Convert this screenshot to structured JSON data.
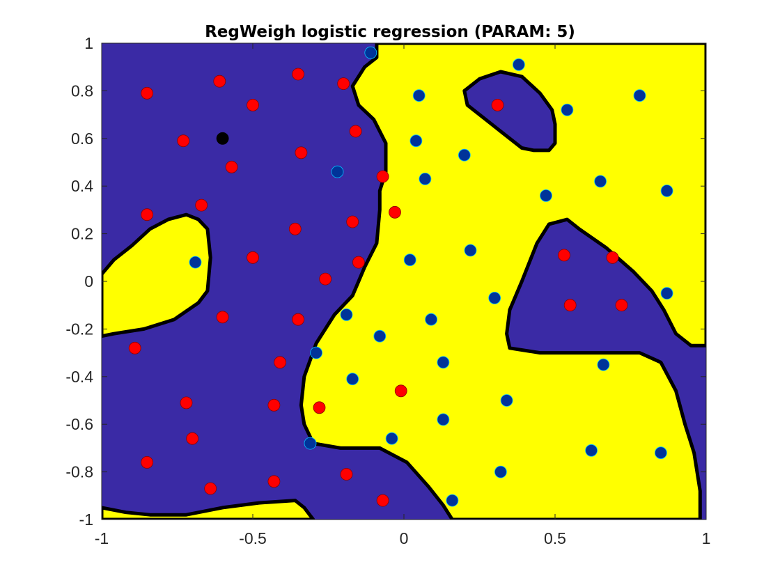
{
  "chart_data": {
    "type": "scatter",
    "title": "RegWeigh logistic regression (PARAM: 5)",
    "xlabel": "",
    "ylabel": "",
    "xlim": [
      -1,
      1
    ],
    "ylim": [
      -1,
      1
    ],
    "grid": false,
    "colors": {
      "class_region_a": "#3A2AA5",
      "class_region_b": "#FFFF00",
      "decision_boundary": "#000000",
      "class_red_points": "#FF0000",
      "class_blue_points": "#003399",
      "highlight_point": "#000000"
    },
    "x_ticks": [
      {
        "value": -1,
        "label": "-1"
      },
      {
        "value": -0.5,
        "label": "-0.5"
      },
      {
        "value": 0,
        "label": "0"
      },
      {
        "value": 0.5,
        "label": "0.5"
      },
      {
        "value": 1,
        "label": "1"
      }
    ],
    "y_ticks": [
      {
        "value": 1,
        "label": "1"
      },
      {
        "value": 0.8,
        "label": "0.8"
      },
      {
        "value": 0.6,
        "label": "0.6"
      },
      {
        "value": 0.4,
        "label": "0.4"
      },
      {
        "value": 0.2,
        "label": "0.2"
      },
      {
        "value": 0,
        "label": "0"
      },
      {
        "value": -0.2,
        "label": "-0.2"
      },
      {
        "value": -0.4,
        "label": "-0.4"
      },
      {
        "value": -0.6,
        "label": "-0.6"
      },
      {
        "value": -0.8,
        "label": "-0.8"
      },
      {
        "value": -1,
        "label": "-1"
      }
    ],
    "regions": [
      {
        "class": "b",
        "points": [
          [
            -0.09,
            1.0
          ],
          [
            -0.09,
            0.94
          ],
          [
            -0.13,
            0.9
          ],
          [
            -0.17,
            0.82
          ],
          [
            -0.15,
            0.74
          ],
          [
            -0.1,
            0.68
          ],
          [
            -0.06,
            0.58
          ],
          [
            -0.06,
            0.46
          ],
          [
            -0.08,
            0.38
          ],
          [
            -0.08,
            0.3
          ],
          [
            -0.09,
            0.16
          ],
          [
            -0.13,
            0.06
          ],
          [
            -0.17,
            -0.06
          ],
          [
            -0.23,
            -0.14
          ],
          [
            -0.29,
            -0.26
          ],
          [
            -0.33,
            -0.4
          ],
          [
            -0.34,
            -0.52
          ],
          [
            -0.33,
            -0.6
          ],
          [
            -0.3,
            -0.68
          ],
          [
            -0.21,
            -0.7
          ],
          [
            -0.08,
            -0.7
          ],
          [
            0.01,
            -0.76
          ],
          [
            0.08,
            -0.86
          ],
          [
            0.13,
            -0.94
          ],
          [
            0.16,
            -1.0
          ],
          [
            0.98,
            -1.0
          ],
          [
            0.98,
            -0.88
          ],
          [
            0.96,
            -0.72
          ],
          [
            0.93,
            -0.6
          ],
          [
            0.9,
            -0.46
          ],
          [
            0.85,
            -0.34
          ],
          [
            0.78,
            -0.3
          ],
          [
            0.68,
            -0.3
          ],
          [
            0.45,
            -0.3
          ],
          [
            0.35,
            -0.28
          ],
          [
            0.34,
            -0.22
          ],
          [
            0.35,
            -0.12
          ],
          [
            0.39,
            0.0
          ],
          [
            0.44,
            0.16
          ],
          [
            0.48,
            0.24
          ],
          [
            0.54,
            0.26
          ],
          [
            0.58,
            0.22
          ],
          [
            0.67,
            0.14
          ],
          [
            0.76,
            0.04
          ],
          [
            0.82,
            -0.04
          ],
          [
            0.86,
            -0.12
          ],
          [
            0.9,
            -0.22
          ],
          [
            0.95,
            -0.27
          ],
          [
            1.0,
            -0.27
          ],
          [
            1.0,
            1.0
          ]
        ]
      },
      {
        "class": "a",
        "points": [
          [
            0.2,
            0.8
          ],
          [
            0.25,
            0.85
          ],
          [
            0.32,
            0.88
          ],
          [
            0.39,
            0.86
          ],
          [
            0.45,
            0.79
          ],
          [
            0.49,
            0.72
          ],
          [
            0.5,
            0.66
          ],
          [
            0.5,
            0.58
          ],
          [
            0.48,
            0.55
          ],
          [
            0.43,
            0.55
          ],
          [
            0.39,
            0.56
          ],
          [
            0.33,
            0.62
          ],
          [
            0.27,
            0.68
          ],
          [
            0.21,
            0.74
          ]
        ]
      },
      {
        "class": "b",
        "points": [
          [
            -1.0,
            0.03
          ],
          [
            -0.96,
            0.09
          ],
          [
            -0.9,
            0.15
          ],
          [
            -0.84,
            0.22
          ],
          [
            -0.78,
            0.26
          ],
          [
            -0.72,
            0.28
          ],
          [
            -0.68,
            0.26
          ],
          [
            -0.65,
            0.22
          ],
          [
            -0.64,
            0.1
          ],
          [
            -0.65,
            -0.04
          ],
          [
            -0.68,
            -0.09
          ],
          [
            -0.76,
            -0.16
          ],
          [
            -0.86,
            -0.2
          ],
          [
            -0.96,
            -0.22
          ],
          [
            -1.0,
            -0.23
          ]
        ]
      },
      {
        "class": "b",
        "points": [
          [
            -1.0,
            -1.0
          ],
          [
            -1.0,
            -0.95
          ],
          [
            -0.92,
            -0.97
          ],
          [
            -0.84,
            -0.98
          ],
          [
            -0.72,
            -0.98
          ],
          [
            -0.6,
            -0.95
          ],
          [
            -0.48,
            -0.93
          ],
          [
            -0.36,
            -0.92
          ],
          [
            -0.33,
            -0.95
          ],
          [
            -0.3,
            -1.0
          ]
        ]
      }
    ],
    "series": [
      {
        "class": "red",
        "points": [
          [
            -0.85,
            0.79
          ],
          [
            -0.61,
            0.84
          ],
          [
            -0.35,
            0.87
          ],
          [
            -0.2,
            0.83
          ],
          [
            -0.5,
            0.74
          ],
          [
            -0.73,
            0.59
          ],
          [
            -0.16,
            0.63
          ],
          [
            -0.34,
            0.54
          ],
          [
            -0.57,
            0.48
          ],
          [
            -0.07,
            0.44
          ],
          [
            -0.85,
            0.28
          ],
          [
            -0.67,
            0.32
          ],
          [
            -0.36,
            0.22
          ],
          [
            -0.17,
            0.25
          ],
          [
            -0.03,
            0.29
          ],
          [
            -0.5,
            0.1
          ],
          [
            -0.15,
            0.08
          ],
          [
            -0.26,
            0.01
          ],
          [
            -0.6,
            -0.15
          ],
          [
            -0.35,
            -0.16
          ],
          [
            -0.89,
            -0.28
          ],
          [
            -0.41,
            -0.34
          ],
          [
            -0.72,
            -0.51
          ],
          [
            -0.43,
            -0.52
          ],
          [
            -0.28,
            -0.53
          ],
          [
            -0.7,
            -0.66
          ],
          [
            -0.85,
            -0.76
          ],
          [
            -0.64,
            -0.87
          ],
          [
            -0.43,
            -0.84
          ],
          [
            -0.19,
            -0.81
          ],
          [
            -0.07,
            -0.92
          ],
          [
            -0.01,
            -0.46
          ],
          [
            0.31,
            0.74
          ],
          [
            0.53,
            0.11
          ],
          [
            0.69,
            0.1
          ],
          [
            0.55,
            -0.1
          ],
          [
            0.72,
            -0.1
          ]
        ]
      },
      {
        "class": "blue",
        "points": [
          [
            -0.11,
            0.96
          ],
          [
            0.38,
            0.91
          ],
          [
            0.05,
            0.78
          ],
          [
            0.54,
            0.72
          ],
          [
            0.78,
            0.78
          ],
          [
            0.04,
            0.59
          ],
          [
            0.2,
            0.53
          ],
          [
            -0.22,
            0.46
          ],
          [
            0.07,
            0.43
          ],
          [
            0.47,
            0.36
          ],
          [
            0.65,
            0.42
          ],
          [
            0.87,
            0.38
          ],
          [
            0.22,
            0.13
          ],
          [
            0.02,
            0.09
          ],
          [
            -0.69,
            0.08
          ],
          [
            0.3,
            -0.07
          ],
          [
            0.09,
            -0.16
          ],
          [
            0.87,
            -0.05
          ],
          [
            -0.19,
            -0.14
          ],
          [
            -0.08,
            -0.23
          ],
          [
            -0.29,
            -0.3
          ],
          [
            0.13,
            -0.34
          ],
          [
            0.66,
            -0.35
          ],
          [
            -0.17,
            -0.41
          ],
          [
            0.34,
            -0.5
          ],
          [
            0.13,
            -0.58
          ],
          [
            -0.31,
            -0.68
          ],
          [
            -0.04,
            -0.66
          ],
          [
            0.62,
            -0.71
          ],
          [
            0.85,
            -0.72
          ],
          [
            0.32,
            -0.8
          ],
          [
            0.16,
            -0.92
          ]
        ]
      },
      {
        "class": "highlight",
        "points": [
          [
            -0.6,
            0.6
          ]
        ]
      }
    ]
  }
}
